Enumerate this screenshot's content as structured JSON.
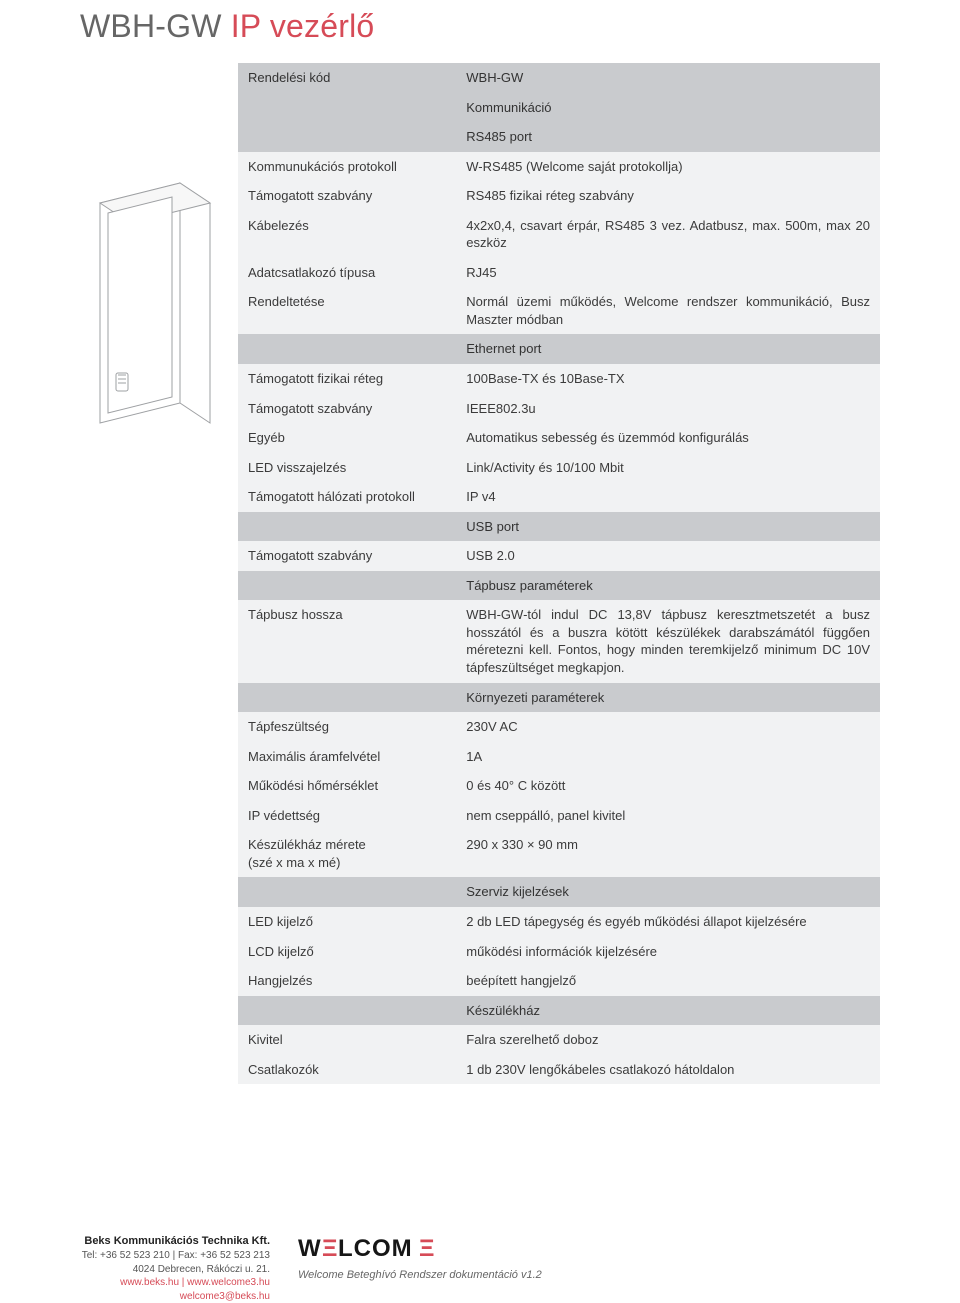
{
  "title": {
    "prefix": "WBH-GW ",
    "accent": "IP vezérlő"
  },
  "rows": [
    {
      "type": "dark",
      "left": "Rendelési kód",
      "right": "WBH-GW"
    },
    {
      "type": "section",
      "right": "Kommunikáció"
    },
    {
      "type": "dark",
      "right": "RS485 port"
    },
    {
      "type": "light",
      "left": "Kommunukációs protokoll",
      "right": "W-RS485 (Welcome saját  protokollja)"
    },
    {
      "type": "light",
      "left": "Támogatott szabvány",
      "right": "RS485 fizikai réteg szabvány"
    },
    {
      "type": "light",
      "left": "Kábelezés",
      "right": "4x2x0,4, csavart érpár, RS485 3 vez. Adatbusz, max. 500m, max 20 eszköz"
    },
    {
      "type": "light",
      "left": "Adatcsatlakozó típusa",
      "right": "RJ45"
    },
    {
      "type": "light",
      "left": "Rendeltetése",
      "right": "Normál üzemi működés, Welcome rendszer kommunikáció, Busz Maszter módban"
    },
    {
      "type": "dark",
      "right": "Ethernet port"
    },
    {
      "type": "light",
      "left": "Támogatott fizikai réteg",
      "right": "100Base-TX és 10Base-TX"
    },
    {
      "type": "light",
      "left": "Támogatott szabvány",
      "right": "IEEE802.3u"
    },
    {
      "type": "light",
      "left": "Egyéb",
      "right": "Automatikus sebesség és üzemmód konfigurálás"
    },
    {
      "type": "light",
      "left": "LED visszajelzés",
      "right": "Link/Activity és 10/100 Mbit"
    },
    {
      "type": "light",
      "left": "Támogatott hálózati protokoll",
      "right": "IP v4"
    },
    {
      "type": "dark",
      "right": "USB port"
    },
    {
      "type": "light",
      "left": "Támogatott szabvány",
      "right": "USB 2.0"
    },
    {
      "type": "dark",
      "right": "Tápbusz paraméterek"
    },
    {
      "type": "light",
      "left": "Tápbusz hossza",
      "right": "WBH-GW-tól indul DC 13,8V tápbusz keresztmetszetét a busz hosszától és a buszra kötött készülékek darabszámától függően méretezni kell. Fontos, hogy minden teremkijelző minimum DC 10V tápfeszültséget megkapjon."
    },
    {
      "type": "dark",
      "right": "Környezeti paraméterek"
    },
    {
      "type": "light",
      "left": "Tápfeszültség",
      "right": "230V AC"
    },
    {
      "type": "light",
      "left": "Maximális áramfelvétel",
      "right": "1A"
    },
    {
      "type": "light",
      "left": "Működési hőmérséklet",
      "right": "0 és 40° C között"
    },
    {
      "type": "light",
      "left": "IP védettség",
      "right": "nem cseppálló, panel kivitel"
    },
    {
      "type": "light",
      "left": "Készülékház mérete\n(szé x ma x mé)",
      "right": "290 x 330 × 90 mm"
    },
    {
      "type": "dark",
      "right": "Szerviz kijelzések"
    },
    {
      "type": "light",
      "left": "LED kijelző",
      "right": "2 db LED tápegység és egyéb működési állapot kijelzésére"
    },
    {
      "type": "light",
      "left": "LCD kijelző",
      "right": "működési információk kijelzésére"
    },
    {
      "type": "light",
      "left": "Hangjelzés",
      "right": "beépített hangjelző"
    },
    {
      "type": "dark",
      "right": "Készülékház"
    },
    {
      "type": "light",
      "left": "Kivitel",
      "right": "Falra szerelhető doboz"
    },
    {
      "type": "light",
      "left": "Csatlakozók",
      "right": "1 db 230V lengőkábeles csatlakozó hátoldalon"
    }
  ],
  "footer": {
    "company_name": "Beks Kommunikációs Technika Kft.",
    "tel": "Tel: +36 52 523 210 | Fax: +36 52 523 213",
    "address": "4024 Debrecen, Rákóczi u. 21.",
    "web": "www.beks.hu | www.welcome3.hu",
    "email": "welcome3@beks.hu",
    "doc": "Welcome Beteghívó Rendszer dokumentáció v1.2",
    "logo": {
      "text_main": "W",
      "text_rest_black": "LCOM",
      "text_red": "Ξ",
      "color_black": "#161616",
      "color_red": "#d64b57"
    }
  },
  "colors": {
    "light_bg": "#f1f2f3",
    "dark_bg": "#c9cbce",
    "accent": "#d64b57",
    "text": "#3b3b3b"
  },
  "thumb": {
    "box_stroke": "#9ea0a3",
    "box_fill": "#ffffff"
  }
}
